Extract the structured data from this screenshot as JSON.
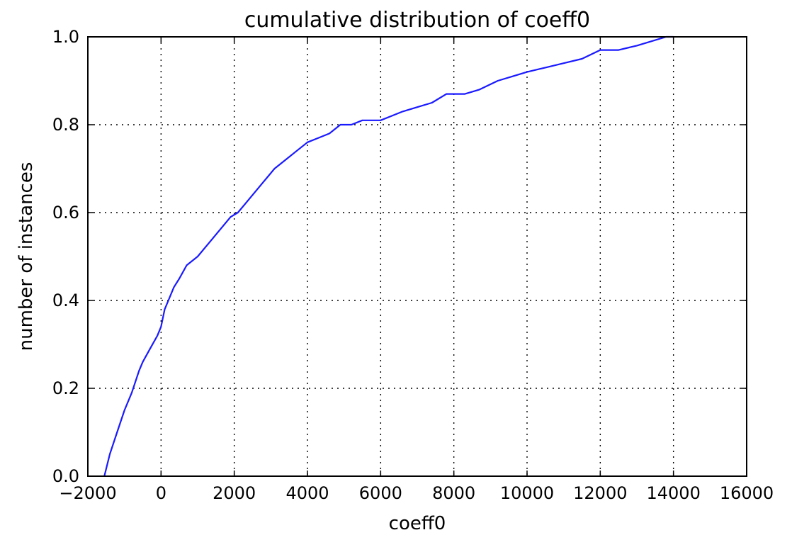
{
  "chart_data": {
    "type": "line",
    "title": "cumulative distribution of coeff0",
    "xlabel": "coeff0",
    "ylabel": "number of instances",
    "xlim": [
      -2000,
      16000
    ],
    "ylim": [
      0.0,
      1.0
    ],
    "x_ticks": [
      -2000,
      0,
      2000,
      4000,
      6000,
      8000,
      10000,
      12000,
      14000,
      16000
    ],
    "x_tick_labels": [
      "−2000",
      "0",
      "2000",
      "4000",
      "6000",
      "8000",
      "10000",
      "12000",
      "14000",
      "16000"
    ],
    "y_ticks": [
      0.0,
      0.2,
      0.4,
      0.6,
      0.8,
      1.0
    ],
    "y_tick_labels": [
      "0.0",
      "0.2",
      "0.4",
      "0.6",
      "0.8",
      "1.0"
    ],
    "grid": true,
    "line_color": "#1a1aff",
    "series": [
      {
        "x": [
          -1550,
          -1400,
          -1200,
          -1000,
          -800,
          -600,
          -500,
          -300,
          -100,
          0,
          100,
          200,
          350,
          500,
          700,
          1000,
          1300,
          1600,
          1900,
          2100,
          2300,
          2500,
          2800,
          3100,
          3400,
          3700,
          4000,
          4300,
          4600,
          4900,
          5200,
          5500,
          5800,
          6000,
          6300,
          6600,
          7000,
          7400,
          7800,
          8300,
          8700,
          9200,
          9600,
          10000,
          10500,
          11000,
          11500,
          12000,
          12500,
          13000,
          13400,
          13800,
          14000
        ],
        "y": [
          0.0,
          0.05,
          0.1,
          0.15,
          0.19,
          0.24,
          0.26,
          0.29,
          0.32,
          0.34,
          0.38,
          0.4,
          0.43,
          0.45,
          0.48,
          0.5,
          0.53,
          0.56,
          0.59,
          0.6,
          0.62,
          0.64,
          0.67,
          0.7,
          0.72,
          0.74,
          0.76,
          0.77,
          0.78,
          0.8,
          0.8,
          0.81,
          0.81,
          0.81,
          0.82,
          0.83,
          0.84,
          0.85,
          0.87,
          0.87,
          0.88,
          0.9,
          0.91,
          0.92,
          0.93,
          0.94,
          0.95,
          0.97,
          0.97,
          0.98,
          0.99,
          1.0,
          1.0
        ]
      }
    ]
  }
}
